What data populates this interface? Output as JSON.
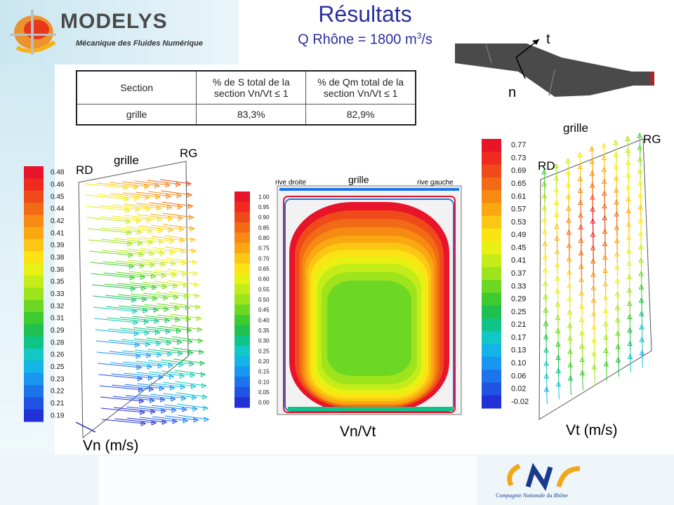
{
  "header": {
    "logo_text": "MODELYS",
    "logo_subtitle": "Mécanique des Fluides Numérique",
    "title": "Résultats",
    "subtitle_prefix": "Q Rhône = 1800 m",
    "subtitle_sup": "3",
    "subtitle_suffix": "/s"
  },
  "schematic": {
    "t_label": "t",
    "n_label": "n"
  },
  "table": {
    "headers": [
      "Section",
      "% de S total de la section Vn/Vt ≤ 1",
      "% de Qm total de la section Vn/Vt ≤ 1"
    ],
    "rows": [
      [
        "grille",
        "83,3%",
        "82,9%"
      ]
    ]
  },
  "left_panel": {
    "caption": "Vn (m/s)",
    "label_rd": "RD",
    "label_grille": "grille",
    "label_rg": "RG",
    "legend_values": [
      "0.48",
      "0.46",
      "0.45",
      "0.44",
      "0.42",
      "0.41",
      "0.39",
      "0.38",
      "0.36",
      "0.35",
      "0.33",
      "0.32",
      "0.31",
      "0.29",
      "0.28",
      "0.26",
      "0.25",
      "0.23",
      "0.22",
      "0.21",
      "0.19"
    ]
  },
  "middle_panel": {
    "caption": "Vn/Vt",
    "label_rive_droite": "rive droite",
    "label_grille": "grille",
    "label_rive_gauche": "rive gauche",
    "legend_values": [
      "1.00",
      "0.95",
      "0.90",
      "0.85",
      "0.80",
      "0.75",
      "0.70",
      "0.65",
      "0.60",
      "0.55",
      "0.50",
      "0.45",
      "0.40",
      "0.35",
      "0.30",
      "0.25",
      "0.20",
      "0.15",
      "0.10",
      "0.05",
      "0.00"
    ]
  },
  "right_panel": {
    "caption": "Vt (m/s)",
    "label_rd": "RD",
    "label_grille": "grille",
    "label_rg": "RG",
    "legend_values": [
      "0.77",
      "0.73",
      "0.69",
      "0.65",
      "0.61",
      "0.57",
      "0.53",
      "0.49",
      "0.45",
      "0.41",
      "0.37",
      "0.33",
      "0.29",
      "0.25",
      "0.21",
      "0.17",
      "0.13",
      "0.10",
      "0.06",
      "0.02",
      "-0.02"
    ]
  },
  "footer": {
    "company": "Compagnie Nationale du Rhône",
    "logo_text": "CNR"
  },
  "colors": {
    "title_blue": "#2a2f9c",
    "scale": [
      "#e8142a",
      "#f02a1e",
      "#f04a1a",
      "#f26a16",
      "#f68a12",
      "#faa812",
      "#fcc614",
      "#fce414",
      "#e8f014",
      "#c4ec18",
      "#9ee41c",
      "#6cd824",
      "#3ccc30",
      "#20c050",
      "#10c488",
      "#12c8c4",
      "#14b4e8",
      "#1896f0",
      "#1c74ec",
      "#2052e4",
      "#2230d8"
    ]
  }
}
